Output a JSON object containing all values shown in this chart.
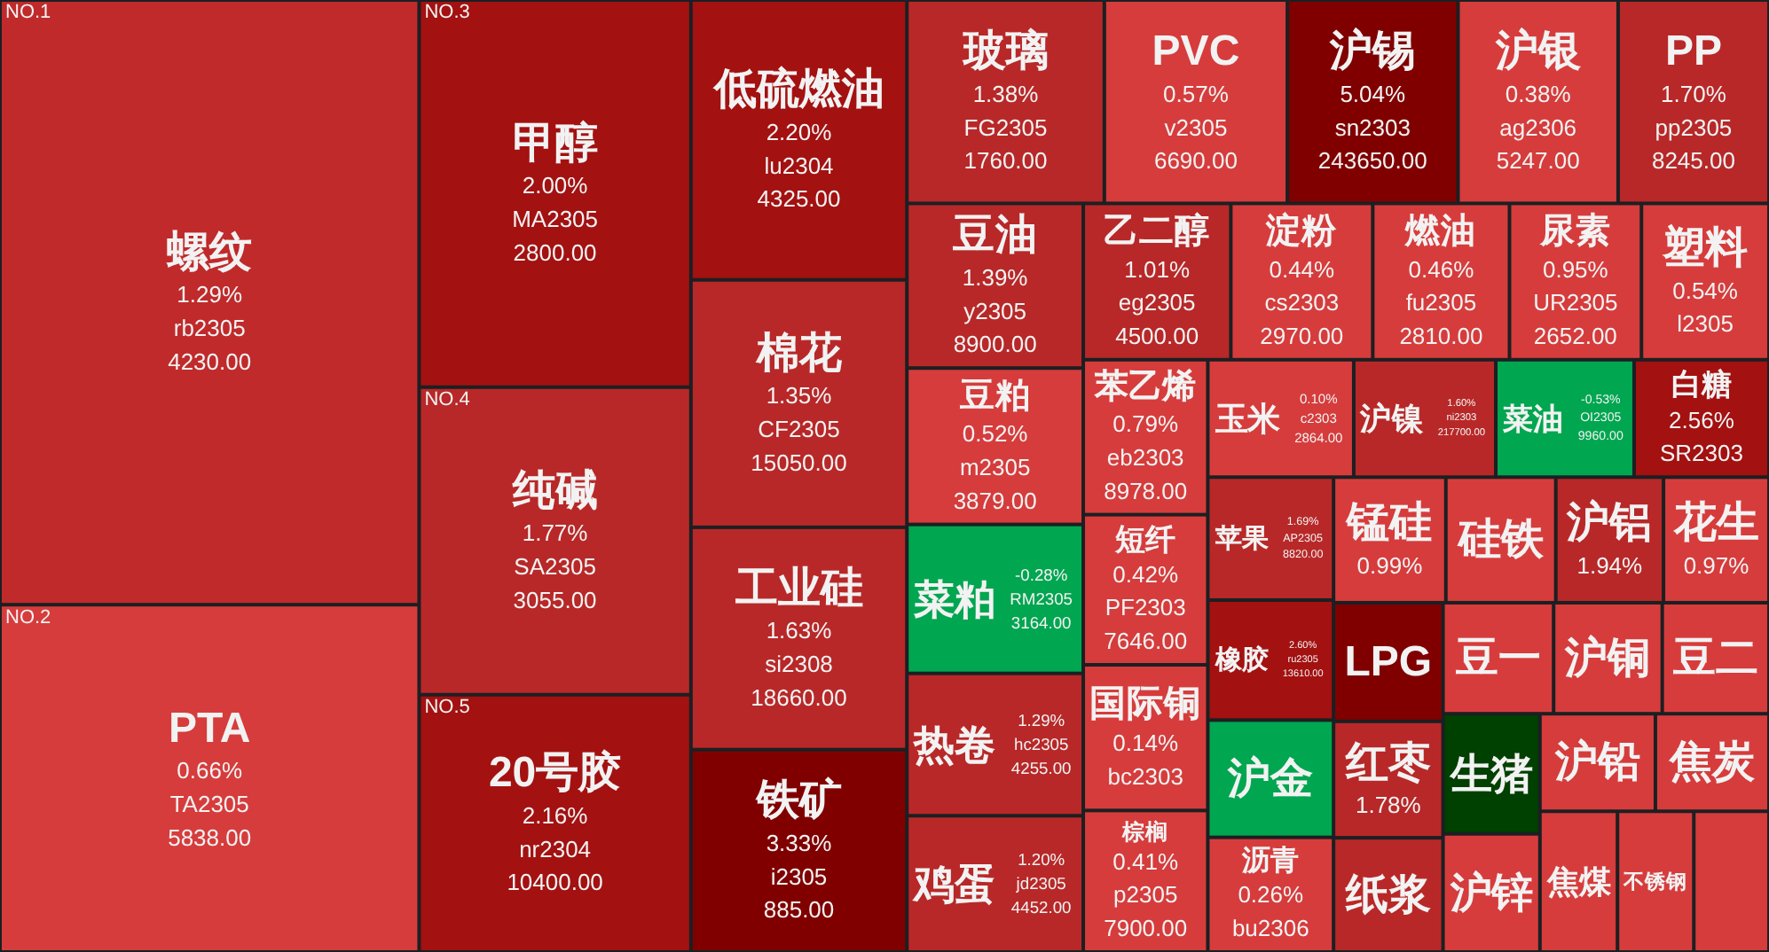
{
  "chart_data": {
    "type": "other",
    "categories": [
      "螺纹",
      "PTA",
      "甲醇",
      "纯碱",
      "20号胶",
      "低硫燃油",
      "棉花",
      "工业硅",
      "铁矿",
      "玻璃",
      "PVC",
      "沪锡",
      "沪银",
      "PP",
      "豆油",
      "豆粕",
      "菜粕",
      "热卷",
      "鸡蛋",
      "乙二醇",
      "淀粉",
      "燃油",
      "尿素",
      "塑料",
      "苯乙烯",
      "短纤",
      "国际铜",
      "棕榈",
      "玉米",
      "沪镍",
      "菜油",
      "白糖",
      "苹果",
      "橡胶",
      "沪金",
      "沥青",
      "锰硅",
      "硅铁",
      "沪铝",
      "花生",
      "LPG",
      "红枣",
      "纸浆",
      "豆一",
      "沪铜",
      "豆二",
      "生猪",
      "沪锌",
      "沪铅",
      "焦炭",
      "焦煤",
      "不锈钢",
      null
    ],
    "values": [
      1.29,
      0.66,
      2.0,
      1.77,
      2.16,
      2.2,
      1.35,
      1.63,
      3.33,
      1.38,
      0.57,
      5.04,
      0.38,
      1.7,
      1.39,
      0.52,
      -0.28,
      1.29,
      1.2,
      1.01,
      0.44,
      0.46,
      0.95,
      0.54,
      0.79,
      0.42,
      0.14,
      0.41,
      0.1,
      1.6,
      -0.53,
      2.56,
      1.69,
      2.6,
      null,
      0.26,
      0.99,
      null,
      1.94,
      0.97,
      null,
      1.78,
      null,
      null,
      null,
      null,
      null,
      null,
      null,
      null,
      null,
      null,
      null
    ],
    "value_labels": [
      "1.29%",
      "0.66%",
      "2.00%",
      "1.77%",
      "2.16%",
      "2.20%",
      "1.35%",
      "1.63%",
      "3.33%",
      "1.38%",
      "0.57%",
      "5.04%",
      "0.38%",
      "1.70%",
      "1.39%",
      "0.52%",
      "-0.28%",
      "1.29%",
      "1.20%",
      "1.01%",
      "0.44%",
      "0.46%",
      "0.95%",
      "0.54%",
      "0.79%",
      "0.42%",
      "0.14%",
      "0.41%",
      "0.10%",
      "1.60%",
      "-0.53%",
      "2.56%",
      "1.69%",
      "2.60%",
      null,
      "0.26%",
      "0.99%",
      null,
      "1.94%",
      "0.97%",
      null,
      "1.78%",
      null,
      null,
      null,
      null,
      null,
      null,
      null,
      null,
      null,
      null,
      null
    ],
    "colors": [
      "#c02a2b",
      "#d63c3c",
      "#a31111",
      "#b82828",
      "#a31111",
      "#a31111",
      "#b82828",
      "#b82828",
      "#800000",
      "#b82828",
      "#d63c3c",
      "#800000",
      "#d63c3c",
      "#b82828",
      "#b82828",
      "#d63c3c",
      "#00a650",
      "#b82828",
      "#b82828",
      "#b82828",
      "#d63c3c",
      "#d63c3c",
      "#d63c3c",
      "#d63c3c",
      "#d63c3c",
      "#d63c3c",
      "#d63c3c",
      "#d63c3c",
      "#d63c3c",
      "#b82828",
      "#00a650",
      "#a31111",
      "#b82828",
      "#a31111",
      "#00a650",
      "#d63c3c",
      "#d63c3c",
      "#d63c3c",
      "#b82828",
      "#d63c3c",
      "#800000",
      "#b82828",
      "#b82828",
      "#d63c3c",
      "#d63c3c",
      "#d63c3c",
      "#004000",
      "#d63c3c",
      "#d63c3c",
      "#d63c3c",
      "#d63c3c",
      "#d63c3c",
      "#d63c3c"
    ],
    "cell_labels": [
      [
        "rb2305",
        "4230.00"
      ],
      [
        "TA2305",
        "5838.00"
      ],
      [
        "MA2305",
        "2800.00"
      ],
      [
        "SA2305",
        "3055.00"
      ],
      [
        "nr2304",
        "10400.00"
      ],
      [
        "lu2304",
        "4325.00"
      ],
      [
        "CF2305",
        "15050.00"
      ],
      [
        "si2308",
        "18660.00"
      ],
      [
        "i2305",
        "885.00"
      ],
      [
        "FG2305",
        "1760.00"
      ],
      [
        "v2305",
        "6690.00"
      ],
      [
        "sn2303",
        "243650.00"
      ],
      [
        "ag2306",
        "5247.00"
      ],
      [
        "pp2305",
        "8245.00"
      ],
      [
        "y2305",
        "8900.00"
      ],
      [
        "m2305",
        "3879.00"
      ],
      [
        "RM2305",
        "3164.00"
      ],
      [
        "hc2305",
        "4255.00"
      ],
      [
        "jd2305",
        "4452.00"
      ],
      [
        "eg2305",
        "4500.00"
      ],
      [
        "cs2303",
        "2970.00"
      ],
      [
        "fu2305",
        "2810.00"
      ],
      [
        "UR2305",
        "2652.00"
      ],
      [
        "l2305",
        null
      ],
      [
        "eb2303",
        "8978.00"
      ],
      [
        "PF2303",
        "7646.00"
      ],
      [
        "bc2303",
        null
      ],
      [
        "p2305",
        "7900.00"
      ],
      [
        "c2303",
        "2864.00"
      ],
      [
        "ni2303",
        "217700.00"
      ],
      [
        "OI2305",
        "9960.00"
      ],
      [
        "SR2303",
        null
      ],
      [
        "AP2305",
        "8820.00"
      ],
      [
        "ru2305",
        "13610.00"
      ],
      [
        null,
        null
      ],
      [
        "bu2306",
        null
      ],
      [
        null,
        null
      ],
      [
        null,
        null
      ],
      [
        null,
        null
      ],
      [
        null,
        null
      ],
      [
        null,
        null
      ],
      [
        null,
        null
      ],
      [
        null,
        null
      ],
      [
        null,
        null
      ],
      [
        null,
        null
      ],
      [
        null,
        null
      ],
      [
        null,
        null
      ],
      [
        null,
        null
      ],
      [
        null,
        null
      ],
      [
        null,
        null
      ],
      [
        null,
        null
      ],
      [
        null,
        null
      ],
      [
        null,
        null
      ]
    ],
    "annotations": [
      {
        "text": "NO.1",
        "x": "螺纹"
      },
      {
        "text": "NO.2",
        "x": "PTA"
      },
      {
        "text": "NO.3",
        "x": "甲醇"
      },
      {
        "text": "NO.4",
        "x": "纯碱"
      },
      {
        "text": "NO.5",
        "x": "20号胶"
      }
    ]
  }
}
